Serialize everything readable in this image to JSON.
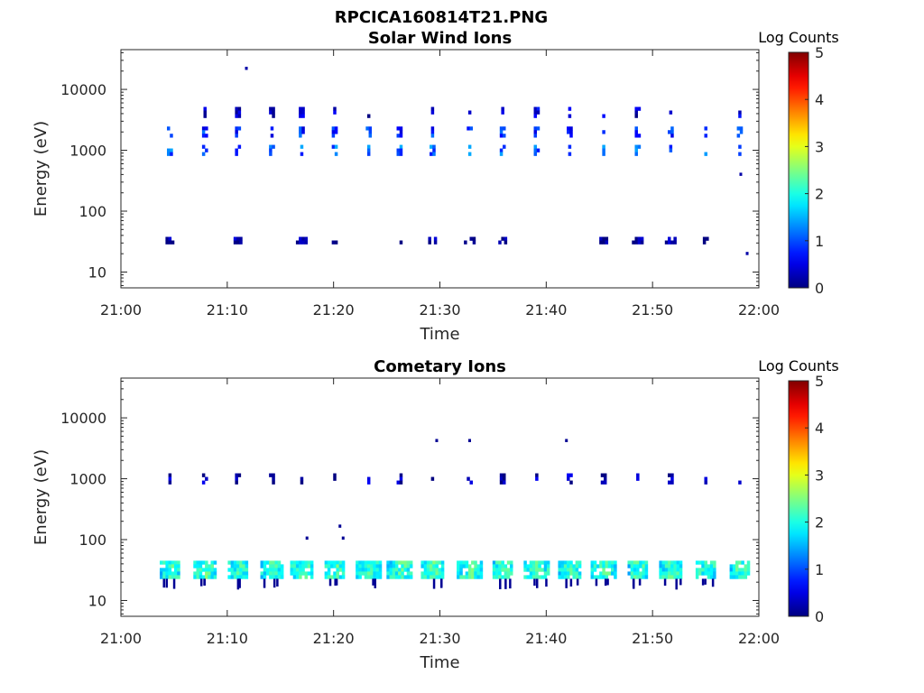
{
  "figure": {
    "title": "RPCICA160814T21.PNG"
  },
  "chart_data": [
    {
      "type": "heatmap",
      "title": "Solar Wind Ions",
      "xlabel": "Time",
      "ylabel": "Energy (eV)",
      "xlim": [
        "21:00",
        "22:00"
      ],
      "xticks": [
        "21:00",
        "21:10",
        "21:20",
        "21:30",
        "21:40",
        "21:50",
        "22:00"
      ],
      "ylim": [
        5.5,
        45000
      ],
      "yscale": "log",
      "yticks": [
        10,
        100,
        1000,
        10000
      ],
      "ytick_labels": [
        "10",
        "100",
        "1000",
        "10000"
      ],
      "grid": false,
      "colorbar": {
        "label": "Log Counts",
        "range": [
          0,
          5
        ],
        "ticks": [
          "0",
          "1",
          "2",
          "3",
          "4",
          "5"
        ],
        "colormap": "jet"
      },
      "sweep_times_min": [
        4.6,
        7.9,
        11.0,
        14.2,
        17.0,
        20.1,
        23.3,
        26.2,
        29.3,
        32.8,
        35.9,
        39.1,
        42.2,
        45.4,
        48.6,
        51.7,
        55.0,
        58.2
      ],
      "bands": [
        {
          "energy_ev": 4200,
          "log_counts": 0.4
        },
        {
          "energy_ev": 2000,
          "log_counts": 0.8
        },
        {
          "energy_ev": 1000,
          "log_counts": 1.1
        },
        {
          "energy_ev": 33,
          "log_counts": 0.1
        }
      ],
      "isolated_points": [
        {
          "time_min": 11.8,
          "energy_ev": 22000,
          "log_counts": 0.2
        },
        {
          "time_min": 58.3,
          "energy_ev": 400,
          "log_counts": 0.2
        },
        {
          "time_min": 58.9,
          "energy_ev": 20,
          "log_counts": 0.2
        }
      ]
    },
    {
      "type": "heatmap",
      "title": "Cometary Ions",
      "xlabel": "Time",
      "ylabel": "Energy (eV)",
      "xlim": [
        "21:00",
        "22:00"
      ],
      "xticks": [
        "21:00",
        "21:10",
        "21:20",
        "21:30",
        "21:40",
        "21:50",
        "22:00"
      ],
      "ylim": [
        5.5,
        45000
      ],
      "yscale": "log",
      "yticks": [
        10,
        100,
        1000,
        10000
      ],
      "ytick_labels": [
        "10",
        "100",
        "1000",
        "10000"
      ],
      "grid": false,
      "colorbar": {
        "label": "Log Counts",
        "range": [
          0,
          5
        ],
        "ticks": [
          "0",
          "1",
          "2",
          "3",
          "4",
          "5"
        ],
        "colormap": "jet"
      },
      "sweep_times_min": [
        4.6,
        7.9,
        11.0,
        14.2,
        17.0,
        20.1,
        23.3,
        26.2,
        29.3,
        32.8,
        35.9,
        39.1,
        42.2,
        45.4,
        48.6,
        51.7,
        55.0,
        58.2
      ],
      "bands": [
        {
          "energy_ev": 32,
          "log_counts": 1.4
        },
        {
          "energy_ev": 1000,
          "log_counts": 0.2
        }
      ],
      "isolated_points": [
        {
          "time_min": 29.7,
          "energy_ev": 4200,
          "log_counts": 0.1
        },
        {
          "time_min": 32.8,
          "energy_ev": 4200,
          "log_counts": 0.1
        },
        {
          "time_min": 41.9,
          "energy_ev": 4200,
          "log_counts": 0.1
        },
        {
          "time_min": 17.5,
          "energy_ev": 105,
          "log_counts": 0.1
        },
        {
          "time_min": 20.6,
          "energy_ev": 165,
          "log_counts": 0.1
        },
        {
          "time_min": 20.9,
          "energy_ev": 105,
          "log_counts": 0.1
        }
      ]
    }
  ]
}
